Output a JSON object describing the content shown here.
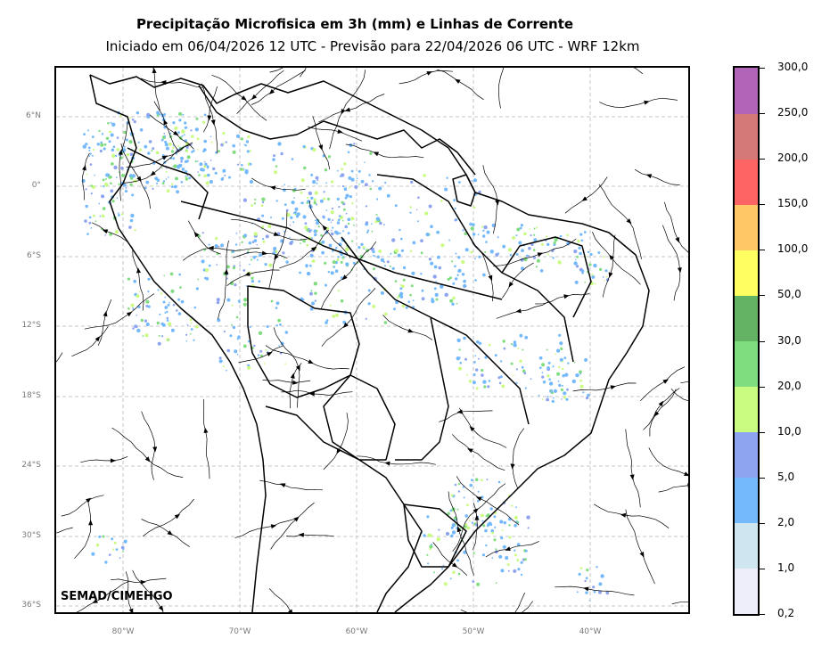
{
  "header": {
    "title": "Precipitação Microfisica em 3h (mm) e Linhas de Corrente",
    "subtitle": "Iniciado em 06/04/2026 12 UTC - Previsão para 22/04/2026 06 UTC - WRF 12km"
  },
  "map": {
    "credit": "SEMAD/CIMEHGO",
    "lat_labels": [
      "6°N",
      "0°",
      "6°S",
      "12°S",
      "18°S",
      "24°S",
      "30°S",
      "36°S"
    ],
    "lon_labels": [
      "80°W",
      "70°W",
      "60°W",
      "50°W",
      "40°W"
    ],
    "gridline_color": "#b5b5b5",
    "streamline_color": "#000000",
    "border_color": "#000000"
  },
  "colorbar": {
    "labels": [
      "0,2",
      "1,0",
      "2,0",
      "5,0",
      "10,0",
      "20,0",
      "30,0",
      "50,0",
      "100,0",
      "150,0",
      "200,0",
      "250,0",
      "300,0"
    ],
    "colors": [
      "#eeeefa",
      "#cfe6f0",
      "#74b9fb",
      "#8fa4f0",
      "#c8fb80",
      "#7fdc7f",
      "#64b264",
      "#ffff62",
      "#ffc864",
      "#ff6464",
      "#d47878",
      "#b064b8"
    ]
  }
}
